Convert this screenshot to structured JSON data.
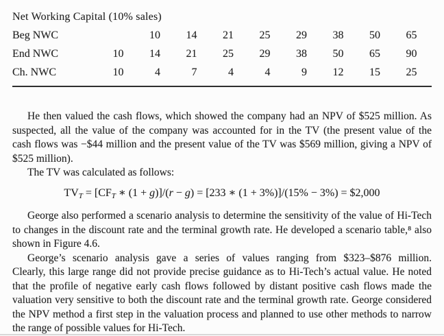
{
  "colors": {
    "background": "#fcfcfc",
    "text": "#1f1f1f",
    "table_rule": "#2e2e2e",
    "bottom_edge_line": "#d8d8d8"
  },
  "table": {
    "title": "Net Working Capital (10% sales)",
    "rows": [
      {
        "label": "Beg NWC",
        "values": [
          "",
          "10",
          "14",
          "21",
          "25",
          "29",
          "38",
          "50",
          "65"
        ]
      },
      {
        "label": "End NWC",
        "values": [
          "10",
          "14",
          "21",
          "25",
          "29",
          "38",
          "50",
          "65",
          "90"
        ]
      },
      {
        "label": "Ch. NWC",
        "values": [
          "10",
          "4",
          "7",
          "4",
          "4",
          "9",
          "12",
          "15",
          "25"
        ]
      }
    ]
  },
  "paragraphs": [
    {
      "type": "para",
      "lines": [
        "He then valued the cash flows, which showed the company had an NPV of $525 million. As",
        "suspected, all the value of the company was accounted for in the TV (the present value of the",
        "cash flows was −$44 million and the present value of the TV was $569 million, giving a NPV of",
        "$525 million)."
      ]
    },
    {
      "type": "para",
      "lines": [
        "The TV was calculated as follows:"
      ]
    },
    {
      "type": "formula",
      "segments": [
        {
          "text": "TV",
          "style": "normal"
        },
        {
          "text": "T",
          "style": "sub"
        },
        {
          "text": " = [CF",
          "style": "normal"
        },
        {
          "text": "T",
          "style": "sub"
        },
        {
          "text": " ∗ (1 + ",
          "style": "normal"
        },
        {
          "text": "g",
          "style": "italic"
        },
        {
          "text": ")]/(",
          "style": "normal"
        },
        {
          "text": "r",
          "style": "italic"
        },
        {
          "text": " − ",
          "style": "normal"
        },
        {
          "text": "g",
          "style": "italic"
        },
        {
          "text": ") = [233 ∗ (1 + 3%)]/(15% − 3%) = $2,000",
          "style": "normal"
        }
      ]
    },
    {
      "type": "para",
      "lines": [
        "George also performed a scenario analysis to determine the sensitivity of the value of Hi-Tech",
        "to changes in the discount rate and the terminal growth rate. He developed a scenario table,⁸ also",
        "shown in Figure 4.6."
      ]
    },
    {
      "type": "para",
      "lines": [
        "George’s scenario analysis gave a series of values ranging from $323–$876 million.",
        "Clearly, this large range did not provide precise guidance as to Hi-Tech’s actual value. He noted",
        "that the profile of negative early cash flows followed by distant positive cash flows made the",
        "valuation very sensitive to both the discount rate and the terminal growth rate. George considered",
        "the NPV method a first step in the valuation process and planned to use other methods to narrow",
        "the range of possible values for Hi-Tech."
      ]
    }
  ]
}
